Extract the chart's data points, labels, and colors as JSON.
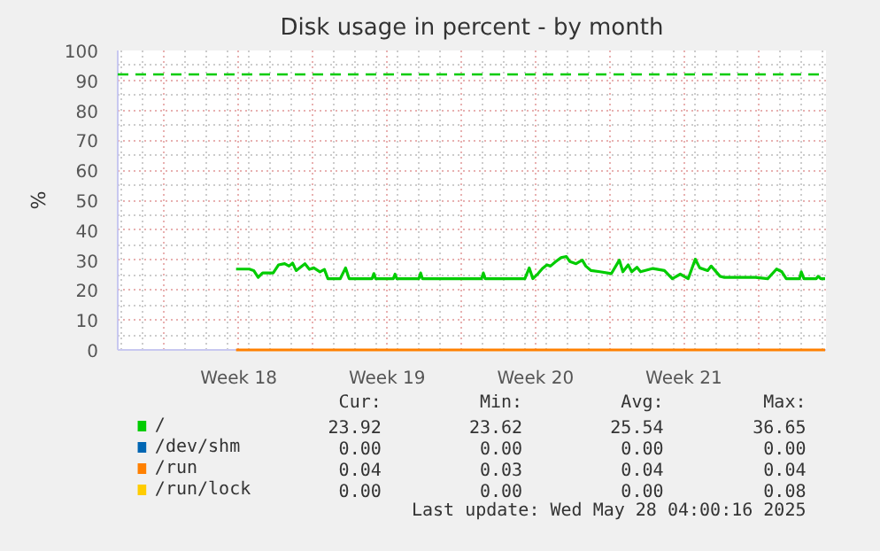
{
  "chart_data": {
    "type": "line",
    "title": "Disk usage in percent - by month",
    "ylabel": "%",
    "xlim": [
      "2025-04-24T19:00",
      "2025-05-28T05:00"
    ],
    "ylim": [
      0,
      100
    ],
    "xticks": [
      {
        "value": "2025-04-27",
        "label": null
      },
      {
        "value": "2025-04-30T12:00",
        "label": "Week 18"
      },
      {
        "value": "2025-05-04",
        "label": null
      },
      {
        "value": "2025-05-07T12:00",
        "label": "Week 19"
      },
      {
        "value": "2025-05-11",
        "label": null
      },
      {
        "value": "2025-05-14T12:00",
        "label": "Week 20"
      },
      {
        "value": "2025-05-18",
        "label": null
      },
      {
        "value": "2025-05-21T12:00",
        "label": "Week 21"
      },
      {
        "value": "2025-05-25",
        "label": null
      }
    ],
    "yticks": [
      0,
      10,
      20,
      30,
      40,
      50,
      60,
      70,
      80,
      90,
      100
    ],
    "grid": true,
    "legend": "bottom",
    "marker": "none",
    "line_style": "solid",
    "series": [
      {
        "name": "/",
        "color": "#00cc00",
        "x": [
          "2025-04-30T09:00",
          "2025-05-01T00:00",
          "2025-05-01T05:00",
          "2025-05-01T10:00",
          "2025-05-01T15:00",
          "2025-05-02T03:00",
          "2025-05-02T09:00",
          "2025-05-02T16:00",
          "2025-05-02T21:00",
          "2025-05-03T01:00",
          "2025-05-03T05:00",
          "2025-05-03T15:00",
          "2025-05-03T20:00",
          "2025-05-04T01:00",
          "2025-05-04T08:00",
          "2025-05-04T13:00",
          "2025-05-04T17:00",
          "2025-05-05T07:00",
          "2025-05-05T13:00",
          "2025-05-05T17:00",
          "2025-05-06T19:00",
          "2025-05-06T21:00",
          "2025-05-06T23:00",
          "2025-05-07T19:00",
          "2025-05-07T21:00",
          "2025-05-07T23:00",
          "2025-05-09T00:00",
          "2025-05-09T02:00",
          "2025-05-09T04:00",
          "2025-05-11T23:00",
          "2025-05-12T01:00",
          "2025-05-12T03:00",
          "2025-05-14T00:00",
          "2025-05-14T05:00",
          "2025-05-14T09:00",
          "2025-05-14T15:00",
          "2025-05-14T20:00",
          "2025-05-15T01:00",
          "2025-05-15T05:00",
          "2025-05-15T11:00",
          "2025-05-15T17:00",
          "2025-05-15T23:00",
          "2025-05-16T03:00",
          "2025-05-16T10:00",
          "2025-05-16T17:00",
          "2025-05-16T21:00",
          "2025-05-17T03:00",
          "2025-05-17T13:00",
          "2025-05-18T02:00",
          "2025-05-18T11:00",
          "2025-05-18T15:00",
          "2025-05-18T21:00",
          "2025-05-19T01:00",
          "2025-05-19T07:00",
          "2025-05-19T11:00",
          "2025-05-20T01:00",
          "2025-05-20T14:00",
          "2025-05-20T23:00",
          "2025-05-21T08:00",
          "2025-05-21T17:00",
          "2025-05-22T01:00",
          "2025-05-22T06:00",
          "2025-05-22T15:00",
          "2025-05-22T19:00",
          "2025-05-23T05:00",
          "2025-05-23T10:00",
          "2025-05-24T21:00",
          "2025-05-25T11:00",
          "2025-05-25T21:00",
          "2025-05-26T03:00",
          "2025-05-26T08:00",
          "2025-05-26T23:00",
          "2025-05-27T01:00",
          "2025-05-27T04:00",
          "2025-05-27T18:00",
          "2025-05-27T20:00",
          "2025-05-27T23:00",
          "2025-05-28T04:00"
        ],
        "values": [
          27.0,
          27.0,
          26.5,
          24.2,
          25.7,
          25.7,
          28.4,
          28.8,
          28.0,
          29.0,
          26.5,
          28.8,
          26.9,
          27.4,
          26.1,
          26.9,
          23.8,
          23.8,
          27.4,
          23.8,
          23.8,
          25.5,
          23.8,
          23.8,
          25.3,
          23.8,
          23.8,
          25.7,
          23.8,
          23.8,
          25.7,
          23.8,
          23.8,
          27.4,
          23.8,
          25.5,
          27.2,
          28.4,
          28.0,
          29.5,
          30.8,
          31.2,
          29.5,
          28.8,
          30.0,
          28.0,
          26.5,
          26.1,
          25.5,
          30.0,
          26.1,
          28.4,
          26.1,
          27.6,
          26.1,
          27.2,
          26.5,
          23.8,
          25.3,
          23.8,
          30.3,
          27.4,
          26.5,
          28.0,
          24.6,
          24.2,
          24.2,
          23.8,
          27.0,
          26.1,
          23.8,
          23.8,
          26.1,
          23.8,
          23.8,
          24.6,
          23.8,
          23.8
        ]
      },
      {
        "name": "/dev/shm",
        "color": "#0066b3"
      },
      {
        "name": "/run",
        "color": "#ff8000",
        "x": [
          "2025-04-30T09:00",
          "2025-05-28T04:00"
        ],
        "values": [
          0,
          0
        ]
      },
      {
        "name": "/run/lock",
        "color": "#ffcc00"
      }
    ],
    "ref_lines": [
      {
        "axis": "y",
        "value": 92,
        "label": null,
        "color": "#00cc00",
        "line_style": "dashed"
      }
    ],
    "annotations": [
      "Cur:",
      "Min:",
      "Avg:",
      "Max:",
      "23.92",
      "23.62",
      "25.54",
      "36.65",
      "0.00",
      "0.00",
      "0.00",
      "0.00",
      "0.04",
      "0.03",
      "0.04",
      "0.04",
      "0.00",
      "0.00",
      "0.00",
      "0.08",
      "Last update: Wed May 28 04:00:16 2025"
    ]
  }
}
